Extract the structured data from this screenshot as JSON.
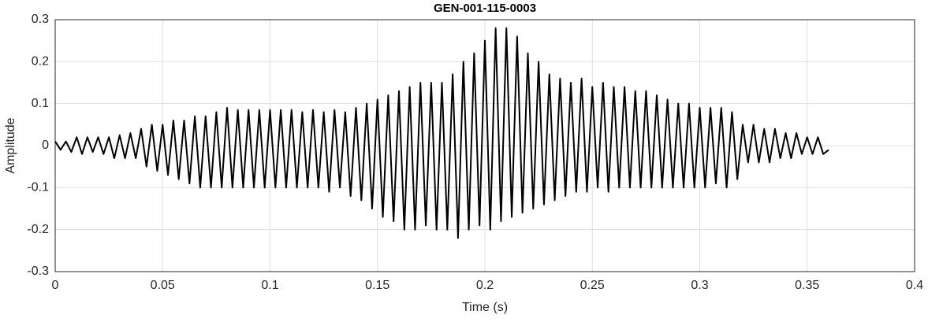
{
  "chart_data": {
    "type": "line",
    "title": "GEN-001-115-0003",
    "xlabel": "Time (s)",
    "ylabel": "Amplitude",
    "xlim": [
      0,
      0.4
    ],
    "xticks": [
      0,
      0.05,
      0.1,
      0.15,
      0.2,
      0.25,
      0.3,
      0.35,
      0.4
    ],
    "ylim": [
      -0.3,
      0.3
    ],
    "yticks": [
      -0.3,
      -0.2,
      -0.1,
      0,
      0.1,
      0.2,
      0.3
    ],
    "grid": true,
    "x": [
      0,
      0.0025,
      0.005,
      0.0075,
      0.01,
      0.0125,
      0.015,
      0.0175,
      0.02,
      0.0225,
      0.025,
      0.0275,
      0.03,
      0.0325,
      0.035,
      0.0375,
      0.04,
      0.0425,
      0.045,
      0.0475,
      0.05,
      0.0525,
      0.055,
      0.0575,
      0.06,
      0.0625,
      0.065,
      0.0675,
      0.07,
      0.0725,
      0.075,
      0.0775,
      0.08,
      0.0825,
      0.085,
      0.0875,
      0.09,
      0.0925,
      0.095,
      0.0975,
      0.1,
      0.1025,
      0.105,
      0.1075,
      0.11,
      0.1125,
      0.115,
      0.1175,
      0.12,
      0.1225,
      0.125,
      0.1275,
      0.13,
      0.1325,
      0.135,
      0.1375,
      0.14,
      0.1425,
      0.145,
      0.1475,
      0.15,
      0.1525,
      0.155,
      0.1575,
      0.16,
      0.1625,
      0.165,
      0.1675,
      0.17,
      0.1725,
      0.175,
      0.1775,
      0.18,
      0.1825,
      0.185,
      0.1875,
      0.19,
      0.1925,
      0.195,
      0.1975,
      0.2,
      0.2025,
      0.205,
      0.2075,
      0.21,
      0.2125,
      0.215,
      0.2175,
      0.22,
      0.2225,
      0.225,
      0.2275,
      0.23,
      0.2325,
      0.235,
      0.2375,
      0.24,
      0.2425,
      0.245,
      0.2475,
      0.25,
      0.2525,
      0.255,
      0.2575,
      0.26,
      0.2625,
      0.265,
      0.2675,
      0.27,
      0.2725,
      0.275,
      0.2775,
      0.28,
      0.2825,
      0.285,
      0.2875,
      0.29,
      0.2925,
      0.295,
      0.2975,
      0.3,
      0.3025,
      0.305,
      0.3075,
      0.31,
      0.3125,
      0.315,
      0.3175,
      0.32,
      0.3225,
      0.325,
      0.3275,
      0.33,
      0.3325,
      0.335,
      0.3375,
      0.34,
      0.3425,
      0.345,
      0.3475,
      0.35,
      0.3525,
      0.355,
      0.3575,
      0.36
    ],
    "series": [
      {
        "color": "#000000",
        "values": [
          0.01,
          -0.01,
          0.01,
          -0.015,
          0.02,
          -0.02,
          0.02,
          -0.015,
          0.02,
          -0.02,
          0.02,
          -0.03,
          0.025,
          -0.03,
          0.03,
          -0.03,
          0.04,
          -0.05,
          0.05,
          -0.06,
          0.05,
          -0.07,
          0.06,
          -0.08,
          0.06,
          -0.09,
          0.07,
          -0.1,
          0.07,
          -0.1,
          0.08,
          -0.1,
          0.09,
          -0.1,
          0.085,
          -0.1,
          0.085,
          -0.1,
          0.085,
          -0.1,
          0.085,
          -0.1,
          0.085,
          -0.1,
          0.085,
          -0.1,
          0.08,
          -0.1,
          0.085,
          -0.1,
          0.08,
          -0.11,
          0.085,
          -0.1,
          0.08,
          -0.12,
          0.09,
          -0.13,
          0.1,
          -0.15,
          0.11,
          -0.17,
          0.12,
          -0.18,
          0.13,
          -0.2,
          0.14,
          -0.2,
          0.15,
          -0.19,
          0.15,
          -0.2,
          0.15,
          -0.2,
          0.17,
          -0.22,
          0.2,
          -0.2,
          0.22,
          -0.19,
          0.25,
          -0.2,
          0.28,
          -0.18,
          0.28,
          -0.17,
          0.26,
          -0.16,
          0.22,
          -0.15,
          0.2,
          -0.14,
          0.17,
          -0.13,
          0.16,
          -0.12,
          0.15,
          -0.11,
          0.16,
          -0.11,
          0.14,
          -0.1,
          0.15,
          -0.11,
          0.14,
          -0.1,
          0.14,
          -0.1,
          0.13,
          -0.1,
          0.13,
          -0.1,
          0.12,
          -0.1,
          0.11,
          -0.1,
          0.1,
          -0.1,
          0.1,
          -0.1,
          0.09,
          -0.1,
          0.09,
          -0.09,
          0.09,
          -0.1,
          0.08,
          -0.08,
          0.05,
          -0.04,
          0.05,
          -0.04,
          0.04,
          -0.04,
          0.04,
          -0.03,
          0.03,
          -0.03,
          0.03,
          -0.02,
          0.02,
          -0.02,
          0.02,
          -0.02,
          -0.01
        ]
      }
    ]
  }
}
